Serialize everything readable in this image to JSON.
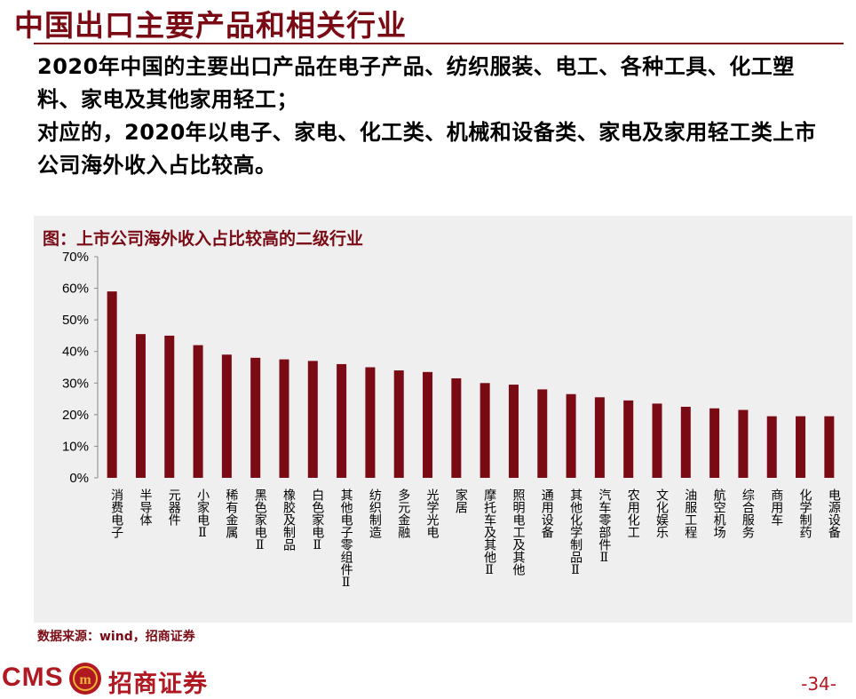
{
  "slide": {
    "title": "中国出口主要产品和相关行业",
    "bullets": [
      "2020年中国的主要出口产品在电子产品、纺织服装、电工、各种工具、化工塑料、家电及其他家用轻工；",
      "对应的，2020年以电子、家电、化工类、机械和设备类、家电及家用轻工类上市公司海外收入占比较高。"
    ],
    "chart_caption": "图：上市公司海外收入占比较高的二级行业",
    "source": "数据来源：wind，招商证券",
    "brand_latin": "CMS",
    "brand_cn": "招商证券",
    "page_number": "-34-"
  },
  "colors": {
    "accent": "#7a0a14",
    "bar": "#7a0a14",
    "panel": "#efefef",
    "brand": "#b01822"
  },
  "icons": {
    "brand_logo": "cms-logo-icon"
  },
  "chart_data": {
    "type": "bar",
    "title": "图：上市公司海外收入占比较高的二级行业",
    "categories": [
      "消费电子",
      "半导体",
      "元器件",
      "小家电Ⅱ",
      "稀有金属",
      "黑色家电Ⅱ",
      "橡胶及制品",
      "白色家电Ⅱ",
      "其他电子零组件Ⅱ",
      "纺织制造",
      "多元金融",
      "光学光电",
      "家居",
      "摩托车及其他Ⅱ",
      "照明电工及其他",
      "通用设备",
      "其他化学制品Ⅱ",
      "汽车零部件Ⅱ",
      "农用化工",
      "文化娱乐",
      "油服工程",
      "航空机场",
      "综合服务",
      "商用车",
      "化学制药",
      "电源设备"
    ],
    "values": [
      59,
      45.5,
      45,
      42,
      39,
      38,
      37.5,
      37,
      36,
      35,
      34,
      33.5,
      31.5,
      30,
      29.5,
      28,
      26.5,
      25.5,
      24.5,
      23.5,
      22.5,
      22,
      21.5,
      19.5,
      19.5,
      19.5
    ],
    "value_format": "percent",
    "ylim": [
      0,
      70
    ],
    "yticks": [
      "0%",
      "10%",
      "20%",
      "30%",
      "40%",
      "50%",
      "60%",
      "70%"
    ],
    "xlabel": "",
    "ylabel": "",
    "grid": false,
    "legend": "none"
  }
}
